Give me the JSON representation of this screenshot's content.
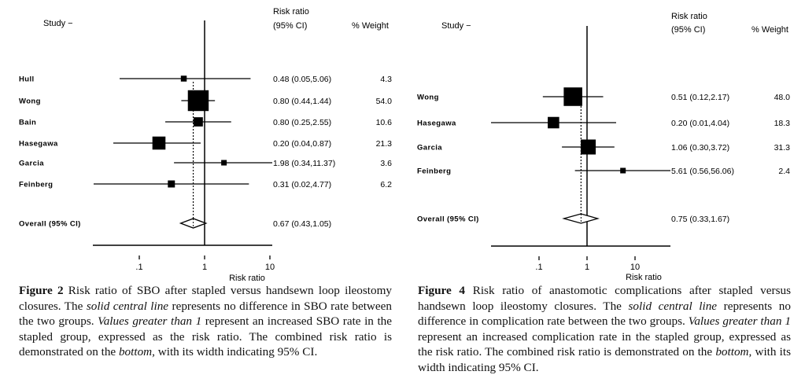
{
  "chart_data": [
    {
      "type": "forest",
      "header": {
        "study": "Study  −",
        "rr_line1": "Risk ratio",
        "rr_line2": "(95% CI)",
        "weight": "% Weight"
      },
      "xlabel": "Risk ratio",
      "xscale": "log",
      "xlim": [
        0.05,
        11.5
      ],
      "xticks": [
        ".1",
        "1",
        "10"
      ],
      "xtick_values": [
        0.1,
        1,
        10
      ],
      "null_line": 1,
      "studies": [
        {
          "name": "Hull",
          "rr": 0.48,
          "lo": 0.05,
          "hi": 5.06,
          "weight": 4.3,
          "rr_text": "0.48 (0.05,5.06)",
          "weight_text": "4.3"
        },
        {
          "name": "Wong",
          "rr": 0.8,
          "lo": 0.44,
          "hi": 1.44,
          "weight": 54.0,
          "rr_text": "0.80 (0.44,1.44)",
          "weight_text": "54.0"
        },
        {
          "name": "Bain",
          "rr": 0.8,
          "lo": 0.25,
          "hi": 2.55,
          "weight": 10.6,
          "rr_text": "0.80 (0.25,2.55)",
          "weight_text": "10.6"
        },
        {
          "name": "Hasegawa",
          "rr": 0.2,
          "lo": 0.04,
          "hi": 0.87,
          "weight": 21.3,
          "rr_text": "0.20 (0.04,0.87)",
          "weight_text": "21.3"
        },
        {
          "name": "Garcia",
          "rr": 1.98,
          "lo": 0.34,
          "hi": 11.37,
          "weight": 3.6,
          "rr_text": "1.98 (0.34,11.37)",
          "weight_text": "3.6"
        },
        {
          "name": "Feinberg",
          "rr": 0.31,
          "lo": 0.02,
          "hi": 4.77,
          "weight": 6.2,
          "rr_text": "0.31 (0.02,4.77)",
          "weight_text": "6.2"
        }
      ],
      "overall": {
        "name": "Overall (95% CI)",
        "rr": 0.67,
        "lo": 0.43,
        "hi": 1.05,
        "rr_text": "0.67 (0.43,1.05)"
      },
      "caption": {
        "label": "Figure 2",
        "parts": [
          {
            "t": " Risk ratio of SBO after stapled versus handsewn loop ileostomy closures. The ",
            "i": false
          },
          {
            "t": "solid central line",
            "i": true
          },
          {
            "t": " represents no difference in SBO rate between the two groups. ",
            "i": false
          },
          {
            "t": "Values greater than 1",
            "i": true
          },
          {
            "t": " represent an increased SBO rate in the stapled group, expressed as the risk ratio. The combined risk ratio is demonstrated on the ",
            "i": false
          },
          {
            "t": "bottom",
            "i": true
          },
          {
            "t": ", with its width indicating 95% CI.",
            "i": false
          }
        ]
      }
    },
    {
      "type": "forest",
      "header": {
        "study": "Study  −",
        "rr_line1": "Risk ratio",
        "rr_line2": "(95% CI)",
        "weight": "% Weight"
      },
      "xlabel": "Risk ratio",
      "xscale": "log",
      "xlim": [
        0.01,
        60
      ],
      "xticks": [
        ".1",
        "1",
        "10"
      ],
      "xtick_values": [
        0.1,
        1,
        10
      ],
      "null_line": 1,
      "studies": [
        {
          "name": "Wong",
          "rr": 0.51,
          "lo": 0.12,
          "hi": 2.17,
          "weight": 48.0,
          "rr_text": "0.51 (0.12,2.17)",
          "weight_text": "48.0"
        },
        {
          "name": "Hasegawa",
          "rr": 0.2,
          "lo": 0.01,
          "hi": 4.04,
          "weight": 18.3,
          "rr_text": "0.20 (0.01,4.04)",
          "weight_text": "18.3"
        },
        {
          "name": "Garcia",
          "rr": 1.06,
          "lo": 0.3,
          "hi": 3.72,
          "weight": 31.3,
          "rr_text": "1.06 (0.30,3.72)",
          "weight_text": "31.3"
        },
        {
          "name": "Feinberg",
          "rr": 5.61,
          "lo": 0.56,
          "hi": 56.06,
          "weight": 2.4,
          "rr_text": "5.61 (0.56,56.06)",
          "weight_text": "2.4"
        }
      ],
      "overall": {
        "name": "Overall (95% CI)",
        "rr": 0.75,
        "lo": 0.33,
        "hi": 1.67,
        "rr_text": "0.75 (0.33,1.67)"
      },
      "caption": {
        "label": "Figure 4",
        "parts": [
          {
            "t": "  Risk ratio of anastomotic complications after stapled versus handsewn loop ileostomy closures. The ",
            "i": false
          },
          {
            "t": "solid central line",
            "i": true
          },
          {
            "t": " represents no difference in complication rate between the two groups. ",
            "i": false
          },
          {
            "t": "Values greater than 1",
            "i": true
          },
          {
            "t": " represent an increased complication rate in the stapled group, expressed as the risk ratio. The combined risk ratio is demonstrated on the ",
            "i": false
          },
          {
            "t": "bottom",
            "i": true
          },
          {
            "t": ", with its width indicating 95% CI.",
            "i": false
          }
        ]
      }
    }
  ]
}
